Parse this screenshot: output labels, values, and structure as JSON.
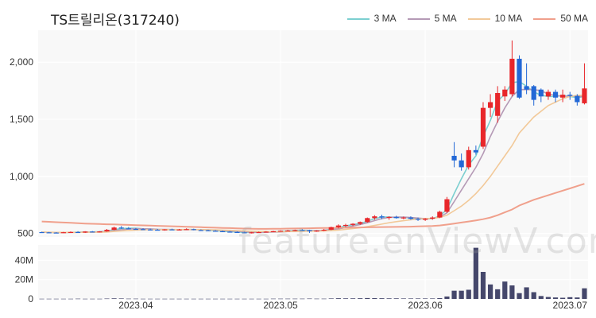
{
  "title": "TS트릴리온(317240)",
  "watermark": "feature.enViewV.com",
  "legend": [
    {
      "name": "3 MA",
      "color": "#7ccfd0"
    },
    {
      "name": "5 MA",
      "color": "#b59ab6"
    },
    {
      "name": "10 MA",
      "color": "#f2c999"
    },
    {
      "name": "50 MA",
      "color": "#f0a08c"
    }
  ],
  "colors": {
    "up": "#e8262a",
    "down": "#2368d6",
    "volume": "#45476b",
    "plot_bg": "#f8f8f8",
    "grid": "#ffffff"
  },
  "chart_data": [
    {
      "type": "candlestick",
      "title": "TS트릴리온(317240)",
      "yticks": [
        "500",
        "1,000",
        "1,500",
        "2,000"
      ],
      "yticks_values": [
        500,
        1000,
        1500,
        2000
      ],
      "ylim": [
        470,
        2280
      ],
      "xticks": [
        "2023.04",
        "2023.05",
        "2023.06",
        "2023.07"
      ],
      "xticks_index": [
        13,
        33,
        53,
        73
      ],
      "candles": [
        [
          512,
          515,
          508,
          510
        ],
        [
          510,
          513,
          505,
          508
        ],
        [
          508,
          512,
          503,
          507
        ],
        [
          507,
          514,
          504,
          511
        ],
        [
          511,
          518,
          508,
          513
        ],
        [
          513,
          520,
          510,
          508
        ],
        [
          508,
          520,
          505,
          517
        ],
        [
          517,
          521,
          512,
          514
        ],
        [
          514,
          520,
          510,
          518
        ],
        [
          518,
          540,
          515,
          532
        ],
        [
          532,
          560,
          528,
          552
        ],
        [
          552,
          565,
          540,
          545
        ],
        [
          545,
          556,
          538,
          540
        ],
        [
          540,
          548,
          533,
          538
        ],
        [
          538,
          546,
          530,
          535
        ],
        [
          535,
          542,
          528,
          533
        ],
        [
          533,
          540,
          526,
          531
        ],
        [
          531,
          538,
          525,
          536
        ],
        [
          536,
          542,
          530,
          532
        ],
        [
          532,
          540,
          528,
          535
        ],
        [
          535,
          545,
          530,
          538
        ],
        [
          538,
          542,
          528,
          530
        ],
        [
          530,
          536,
          524,
          528
        ],
        [
          528,
          533,
          520,
          524
        ],
        [
          524,
          530,
          516,
          520
        ],
        [
          520,
          526,
          513,
          516
        ],
        [
          516,
          522,
          510,
          513
        ],
        [
          513,
          518,
          507,
          510
        ],
        [
          510,
          515,
          503,
          507
        ],
        [
          507,
          513,
          500,
          510
        ],
        [
          510,
          516,
          505,
          512
        ],
        [
          512,
          520,
          508,
          516
        ],
        [
          516,
          524,
          512,
          520
        ],
        [
          520,
          528,
          516,
          524
        ],
        [
          524,
          532,
          520,
          526
        ],
        [
          526,
          534,
          520,
          530
        ],
        [
          530,
          538,
          524,
          528
        ],
        [
          528,
          533,
          505,
          522
        ],
        [
          522,
          528,
          515,
          525
        ],
        [
          525,
          540,
          520,
          533
        ],
        [
          533,
          560,
          530,
          555
        ],
        [
          555,
          580,
          545,
          570
        ],
        [
          570,
          585,
          555,
          575
        ],
        [
          575,
          590,
          565,
          585
        ],
        [
          585,
          605,
          575,
          600
        ],
        [
          600,
          640,
          595,
          635
        ],
        [
          635,
          660,
          620,
          650
        ],
        [
          650,
          665,
          625,
          640
        ],
        [
          640,
          650,
          620,
          645
        ],
        [
          645,
          655,
          630,
          635
        ],
        [
          635,
          648,
          625,
          640
        ],
        [
          640,
          650,
          620,
          628
        ],
        [
          628,
          640,
          610,
          620
        ],
        [
          620,
          635,
          610,
          630
        ],
        [
          630,
          650,
          620,
          640
        ],
        [
          640,
          700,
          635,
          690
        ],
        [
          690,
          820,
          680,
          800
        ],
        [
          1180,
          1300,
          1080,
          1140
        ],
        [
          1140,
          1200,
          1050,
          1080
        ],
        [
          1080,
          1260,
          1060,
          1230
        ],
        [
          1230,
          1270,
          1190,
          1210
        ],
        [
          1260,
          1650,
          1240,
          1600
        ],
        [
          1600,
          1720,
          1520,
          1650
        ],
        [
          1530,
          1790,
          1470,
          1730
        ],
        [
          1700,
          1790,
          1660,
          1760
        ],
        [
          1720,
          2190,
          1700,
          2030
        ],
        [
          2030,
          2060,
          1680,
          1690
        ],
        [
          1790,
          1990,
          1720,
          1760
        ],
        [
          1790,
          1800,
          1620,
          1670
        ],
        [
          1760,
          1770,
          1650,
          1700
        ],
        [
          1700,
          1760,
          1670,
          1740
        ],
        [
          1740,
          1760,
          1650,
          1690
        ],
        [
          1690,
          1760,
          1650,
          1715
        ],
        [
          1715,
          1740,
          1670,
          1705
        ],
        [
          1705,
          1720,
          1620,
          1650
        ],
        [
          1640,
          1990,
          1630,
          1770
        ]
      ],
      "ma3": [
        511,
        510,
        508,
        508,
        510,
        512,
        513,
        513,
        516,
        521,
        534,
        543,
        546,
        546,
        541,
        538,
        535,
        533,
        533,
        533,
        535,
        535,
        533,
        528,
        524,
        520,
        516,
        513,
        510,
        509,
        510,
        513,
        516,
        520,
        523,
        527,
        528,
        527,
        525,
        527,
        538,
        553,
        567,
        577,
        587,
        607,
        630,
        644,
        645,
        640,
        640,
        635,
        628,
        626,
        630,
        653,
        710,
        850,
        980,
        1100,
        1180,
        1350,
        1490,
        1660,
        1720,
        1820,
        1830,
        1790,
        1740,
        1710,
        1700,
        1700,
        1710,
        1700,
        1690,
        1700
      ],
      "ma5": [
        511,
        510,
        509,
        509,
        510,
        510,
        511,
        512,
        513,
        518,
        525,
        533,
        539,
        542,
        541,
        540,
        537,
        536,
        535,
        534,
        534,
        534,
        534,
        533,
        529,
        526,
        523,
        519,
        515,
        512,
        511,
        511,
        512,
        513,
        517,
        520,
        523,
        525,
        526,
        527,
        531,
        540,
        552,
        566,
        578,
        594,
        613,
        630,
        641,
        643,
        643,
        640,
        635,
        630,
        630,
        645,
        680,
        780,
        880,
        980,
        1080,
        1200,
        1350,
        1480,
        1600,
        1700,
        1760,
        1760,
        1760,
        1750,
        1720,
        1710,
        1700,
        1705,
        1700,
        1700
      ],
      "ma10": [
        511,
        511,
        510,
        510,
        510,
        510,
        511,
        511,
        511,
        513,
        518,
        522,
        526,
        530,
        532,
        533,
        533,
        534,
        534,
        534,
        535,
        534,
        534,
        533,
        532,
        530,
        528,
        526,
        523,
        520,
        518,
        517,
        516,
        516,
        517,
        518,
        519,
        520,
        521,
        522,
        525,
        530,
        536,
        543,
        551,
        560,
        570,
        582,
        594,
        604,
        612,
        620,
        626,
        630,
        633,
        640,
        660,
        700,
        740,
        790,
        850,
        920,
        1000,
        1090,
        1180,
        1270,
        1380,
        1450,
        1520,
        1570,
        1620,
        1650,
        1680,
        1700,
        1710,
        1710
      ],
      "ma50": [
        605,
        602,
        599,
        596,
        593,
        590,
        587,
        585,
        583,
        581,
        579,
        577,
        575,
        573,
        571,
        569,
        567,
        565,
        563,
        561,
        559,
        557,
        555,
        553,
        551,
        549,
        547,
        545,
        543,
        541,
        540,
        540,
        541,
        542,
        543,
        544,
        545,
        546,
        547,
        548,
        549,
        550,
        551,
        552,
        553,
        554,
        555,
        556,
        557,
        558,
        559,
        560,
        562,
        564,
        566,
        570,
        578,
        587,
        596,
        605,
        615,
        625,
        640,
        660,
        685,
        710,
        745,
        770,
        795,
        815,
        835,
        855,
        875,
        895,
        915,
        935
      ]
    },
    {
      "type": "bar",
      "title": "Volume",
      "yticks": [
        "0",
        "20M",
        "40M"
      ],
      "yticks_values": [
        0,
        20,
        40
      ],
      "ylim": [
        0,
        56
      ],
      "volume": [
        0.2,
        0.2,
        0.2,
        0.2,
        0.2,
        0.3,
        0.2,
        0.2,
        0.2,
        0.4,
        0.6,
        0.5,
        0.3,
        0.3,
        0.2,
        0.2,
        0.2,
        0.2,
        0.2,
        0.2,
        0.2,
        0.2,
        0.2,
        0.2,
        0.2,
        0.2,
        0.2,
        0.2,
        0.2,
        0.2,
        0.2,
        0.2,
        0.3,
        0.3,
        0.3,
        0.3,
        0.3,
        0.4,
        0.3,
        0.3,
        0.5,
        0.7,
        0.6,
        0.6,
        0.7,
        0.9,
        0.8,
        0.7,
        0.6,
        0.6,
        0.5,
        0.5,
        0.5,
        0.5,
        0.5,
        0.8,
        2.5,
        8.5,
        8.5,
        9.5,
        53,
        28,
        15,
        10,
        18,
        14,
        6,
        12,
        7,
        3,
        2,
        1.5,
        1.2,
        1.8,
        1.5,
        11
      ]
    }
  ]
}
